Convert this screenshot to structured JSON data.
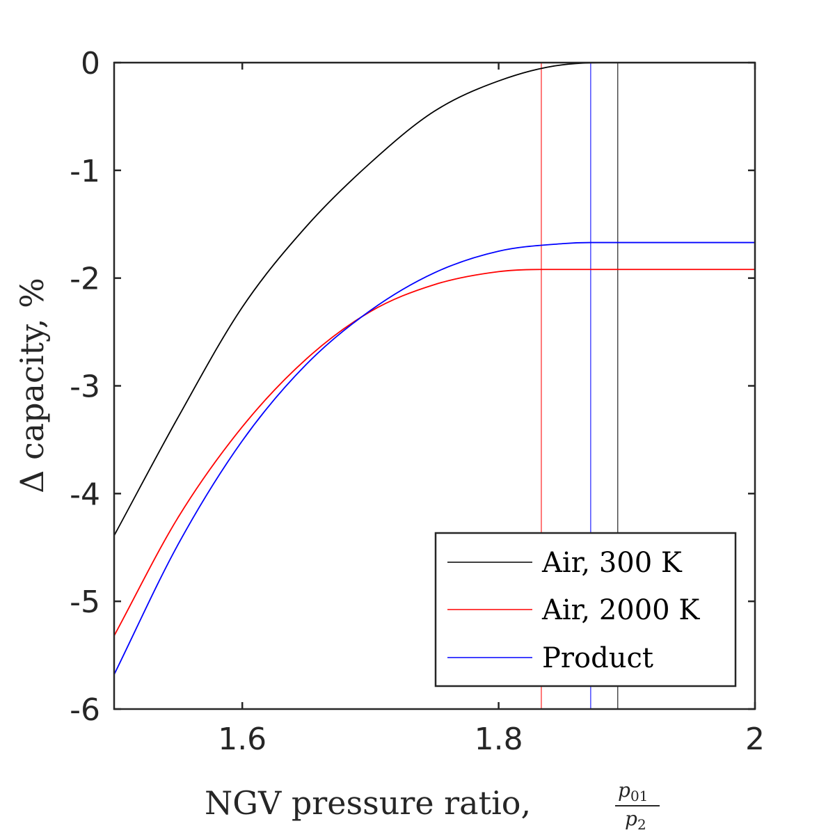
{
  "chart_data": {
    "type": "line",
    "title": "",
    "xlabel": "NGV pressure ratio,",
    "xlabel_fraction": {
      "numerator": "p",
      "numerator_sub": "01",
      "denominator": "p",
      "denominator_sub": "2"
    },
    "ylabel": "Δ capacity, %",
    "xlim": [
      1.5,
      2.0
    ],
    "ylim": [
      -6,
      0
    ],
    "xticks": [
      1.6,
      1.8,
      2.0
    ],
    "xtick_labels": [
      "1.6",
      "1.8",
      "2"
    ],
    "yticks": [
      0,
      -1,
      -2,
      -3,
      -4,
      -5,
      -6
    ],
    "ytick_labels": [
      "0",
      "-1",
      "-2",
      "-3",
      "-4",
      "-5",
      "-6"
    ],
    "grid": false,
    "legend_position": "bottom-right",
    "series": [
      {
        "name": "Air, 300 K",
        "color": "#000000",
        "x": [
          1.5,
          1.55,
          1.6,
          1.65,
          1.7,
          1.75,
          1.8,
          1.85,
          1.8929,
          2.0
        ],
        "y": [
          -4.39,
          -3.29,
          -2.27,
          -1.52,
          -0.93,
          -0.45,
          -0.17,
          -0.02,
          0.0,
          0.0
        ],
        "choke_x": 1.8929
      },
      {
        "name": "Air, 2000 K",
        "color": "#ff0000",
        "x": [
          1.5,
          1.55,
          1.6,
          1.65,
          1.7,
          1.75,
          1.8,
          1.8333,
          2.0
        ],
        "y": [
          -5.32,
          -4.22,
          -3.38,
          -2.75,
          -2.31,
          -2.06,
          -1.94,
          -1.92,
          -1.92
        ],
        "choke_x": 1.8333
      },
      {
        "name": "Product",
        "color": "#0000ff",
        "x": [
          1.5,
          1.55,
          1.6,
          1.65,
          1.7,
          1.75,
          1.8,
          1.85,
          1.8718,
          2.0
        ],
        "y": [
          -5.68,
          -4.47,
          -3.51,
          -2.8,
          -2.3,
          -1.95,
          -1.75,
          -1.68,
          -1.67,
          -1.67
        ],
        "choke_x": 1.8718
      }
    ]
  }
}
